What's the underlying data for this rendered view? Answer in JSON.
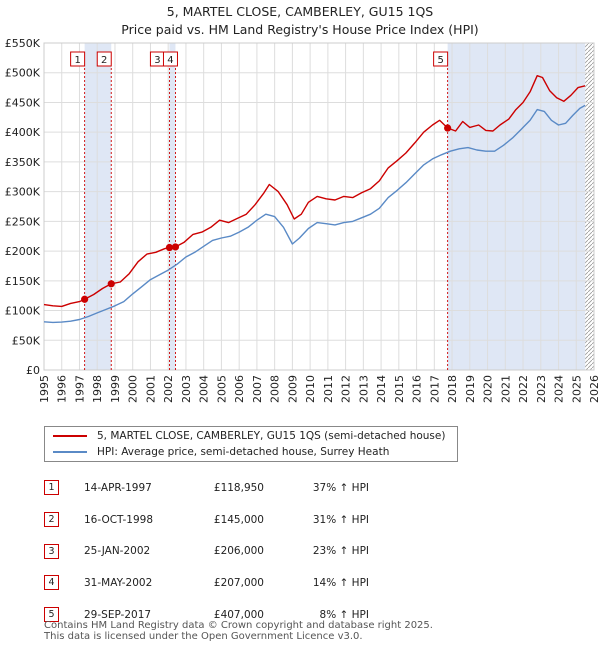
{
  "header": {
    "title": "5, MARTEL CLOSE, CAMBERLEY, GU15 1QS",
    "subtitle": "Price paid vs. HM Land Registry's House Price Index (HPI)"
  },
  "colors": {
    "property": "#cc0000",
    "hpi": "#5a8ac6",
    "shade": "#dfe7f5",
    "grid": "#dddddd"
  },
  "chart_data": {
    "type": "line",
    "title": "5, MARTEL CLOSE, CAMBERLEY, GU15 1QS",
    "xlabel": "",
    "ylabel": "",
    "xlim": [
      1995,
      2026
    ],
    "ylim": [
      0,
      550000
    ],
    "y_ticks": [
      0,
      50000,
      100000,
      150000,
      200000,
      250000,
      300000,
      350000,
      400000,
      450000,
      500000,
      550000
    ],
    "y_tick_labels": [
      "£0",
      "£50K",
      "£100K",
      "£150K",
      "£200K",
      "£250K",
      "£300K",
      "£350K",
      "£400K",
      "£450K",
      "£500K",
      "£550K"
    ],
    "x_ticks": [
      1995,
      1996,
      1997,
      1998,
      1999,
      2000,
      2001,
      2002,
      2003,
      2004,
      2005,
      2006,
      2007,
      2008,
      2009,
      2010,
      2011,
      2012,
      2013,
      2014,
      2015,
      2016,
      2017,
      2018,
      2019,
      2020,
      2021,
      2022,
      2023,
      2024,
      2025,
      2026
    ],
    "shaded_ranges": [
      [
        1997.29,
        1998.79
      ],
      [
        2002.07,
        2002.41
      ],
      [
        2017.75,
        2025.5
      ]
    ],
    "hatched_from": 2025.5,
    "series": [
      {
        "name": "5, MARTEL CLOSE, CAMBERLEY, GU15 1QS (semi-detached house)",
        "color": "#cc0000",
        "points": [
          [
            1995.0,
            110000
          ],
          [
            1995.5,
            108000
          ],
          [
            1996.0,
            107000
          ],
          [
            1996.5,
            112000
          ],
          [
            1997.0,
            115000
          ],
          [
            1997.29,
            118950
          ],
          [
            1997.8,
            127000
          ],
          [
            1998.3,
            137000
          ],
          [
            1998.79,
            145000
          ],
          [
            1999.3,
            148000
          ],
          [
            1999.8,
            162000
          ],
          [
            2000.3,
            182000
          ],
          [
            2000.8,
            195000
          ],
          [
            2001.3,
            198000
          ],
          [
            2001.8,
            204000
          ],
          [
            2002.07,
            206000
          ],
          [
            2002.41,
            207000
          ],
          [
            2002.9,
            215000
          ],
          [
            2003.4,
            228000
          ],
          [
            2003.9,
            232000
          ],
          [
            2004.4,
            240000
          ],
          [
            2004.9,
            252000
          ],
          [
            2005.4,
            248000
          ],
          [
            2005.9,
            255000
          ],
          [
            2006.4,
            262000
          ],
          [
            2006.9,
            278000
          ],
          [
            2007.4,
            298000
          ],
          [
            2007.7,
            312000
          ],
          [
            2008.2,
            300000
          ],
          [
            2008.7,
            278000
          ],
          [
            2009.1,
            254000
          ],
          [
            2009.5,
            262000
          ],
          [
            2009.9,
            282000
          ],
          [
            2010.4,
            292000
          ],
          [
            2010.9,
            288000
          ],
          [
            2011.4,
            286000
          ],
          [
            2011.9,
            292000
          ],
          [
            2012.4,
            290000
          ],
          [
            2012.9,
            298000
          ],
          [
            2013.4,
            305000
          ],
          [
            2013.9,
            318000
          ],
          [
            2014.4,
            340000
          ],
          [
            2014.9,
            352000
          ],
          [
            2015.4,
            365000
          ],
          [
            2015.9,
            382000
          ],
          [
            2016.4,
            400000
          ],
          [
            2016.9,
            412000
          ],
          [
            2017.3,
            420000
          ],
          [
            2017.75,
            407000
          ],
          [
            2018.2,
            402000
          ],
          [
            2018.6,
            418000
          ],
          [
            2019.0,
            408000
          ],
          [
            2019.5,
            412000
          ],
          [
            2019.9,
            403000
          ],
          [
            2020.3,
            402000
          ],
          [
            2020.7,
            412000
          ],
          [
            2021.2,
            422000
          ],
          [
            2021.6,
            438000
          ],
          [
            2022.0,
            450000
          ],
          [
            2022.4,
            468000
          ],
          [
            2022.8,
            495000
          ],
          [
            2023.1,
            492000
          ],
          [
            2023.5,
            470000
          ],
          [
            2023.9,
            458000
          ],
          [
            2024.3,
            452000
          ],
          [
            2024.7,
            462000
          ],
          [
            2025.1,
            475000
          ],
          [
            2025.5,
            478000
          ]
        ]
      },
      {
        "name": "HPI: Average price, semi-detached house, Surrey Heath",
        "color": "#5a8ac6",
        "points": [
          [
            1995.0,
            81000
          ],
          [
            1995.5,
            80000
          ],
          [
            1996.0,
            80500
          ],
          [
            1996.5,
            82000
          ],
          [
            1997.0,
            85000
          ],
          [
            1997.5,
            90000
          ],
          [
            1998.0,
            96000
          ],
          [
            1998.5,
            102000
          ],
          [
            1999.0,
            108000
          ],
          [
            1999.5,
            115000
          ],
          [
            2000.0,
            128000
          ],
          [
            2000.5,
            140000
          ],
          [
            2001.0,
            152000
          ],
          [
            2001.5,
            160000
          ],
          [
            2002.0,
            168000
          ],
          [
            2002.5,
            178000
          ],
          [
            2003.0,
            190000
          ],
          [
            2003.5,
            198000
          ],
          [
            2004.0,
            208000
          ],
          [
            2004.5,
            218000
          ],
          [
            2005.0,
            222000
          ],
          [
            2005.5,
            225000
          ],
          [
            2006.0,
            232000
          ],
          [
            2006.5,
            240000
          ],
          [
            2007.0,
            252000
          ],
          [
            2007.5,
            262000
          ],
          [
            2008.0,
            258000
          ],
          [
            2008.5,
            240000
          ],
          [
            2009.0,
            212000
          ],
          [
            2009.4,
            222000
          ],
          [
            2009.9,
            238000
          ],
          [
            2010.4,
            248000
          ],
          [
            2010.9,
            246000
          ],
          [
            2011.4,
            244000
          ],
          [
            2011.9,
            248000
          ],
          [
            2012.4,
            250000
          ],
          [
            2012.9,
            256000
          ],
          [
            2013.4,
            262000
          ],
          [
            2013.9,
            272000
          ],
          [
            2014.4,
            290000
          ],
          [
            2014.9,
            302000
          ],
          [
            2015.4,
            315000
          ],
          [
            2015.9,
            330000
          ],
          [
            2016.4,
            345000
          ],
          [
            2016.9,
            355000
          ],
          [
            2017.4,
            362000
          ],
          [
            2017.9,
            368000
          ],
          [
            2018.4,
            372000
          ],
          [
            2018.9,
            374000
          ],
          [
            2019.4,
            370000
          ],
          [
            2019.9,
            368000
          ],
          [
            2020.4,
            368000
          ],
          [
            2020.9,
            378000
          ],
          [
            2021.4,
            390000
          ],
          [
            2021.9,
            405000
          ],
          [
            2022.4,
            420000
          ],
          [
            2022.8,
            438000
          ],
          [
            2023.2,
            435000
          ],
          [
            2023.6,
            420000
          ],
          [
            2024.0,
            412000
          ],
          [
            2024.4,
            415000
          ],
          [
            2024.8,
            428000
          ],
          [
            2025.2,
            440000
          ],
          [
            2025.5,
            445000
          ]
        ]
      }
    ],
    "sales": [
      {
        "label": "1",
        "x": 1997.29,
        "y": 118950
      },
      {
        "label": "2",
        "x": 1998.79,
        "y": 145000
      },
      {
        "label": "3",
        "x": 2002.07,
        "y": 206000
      },
      {
        "label": "4",
        "x": 2002.41,
        "y": 207000
      },
      {
        "label": "5",
        "x": 2017.75,
        "y": 407000
      }
    ]
  },
  "legend": {
    "property_label": "5, MARTEL CLOSE, CAMBERLEY, GU15 1QS (semi-detached house)",
    "hpi_label": "HPI: Average price, semi-detached house, Surrey Heath"
  },
  "sales_table": [
    {
      "num": "1",
      "date": "14-APR-1997",
      "price": "£118,950",
      "change": "37% ↑ HPI"
    },
    {
      "num": "2",
      "date": "16-OCT-1998",
      "price": "£145,000",
      "change": "31% ↑ HPI"
    },
    {
      "num": "3",
      "date": "25-JAN-2002",
      "price": "£206,000",
      "change": "23% ↑ HPI"
    },
    {
      "num": "4",
      "date": "31-MAY-2002",
      "price": "£207,000",
      "change": "14% ↑ HPI"
    },
    {
      "num": "5",
      "date": "29-SEP-2017",
      "price": "£407,000",
      "change": "8% ↑ HPI"
    }
  ],
  "footer": {
    "line1": "Contains HM Land Registry data © Crown copyright and database right 2025.",
    "line2": "This data is licensed under the Open Government Licence v3.0."
  }
}
